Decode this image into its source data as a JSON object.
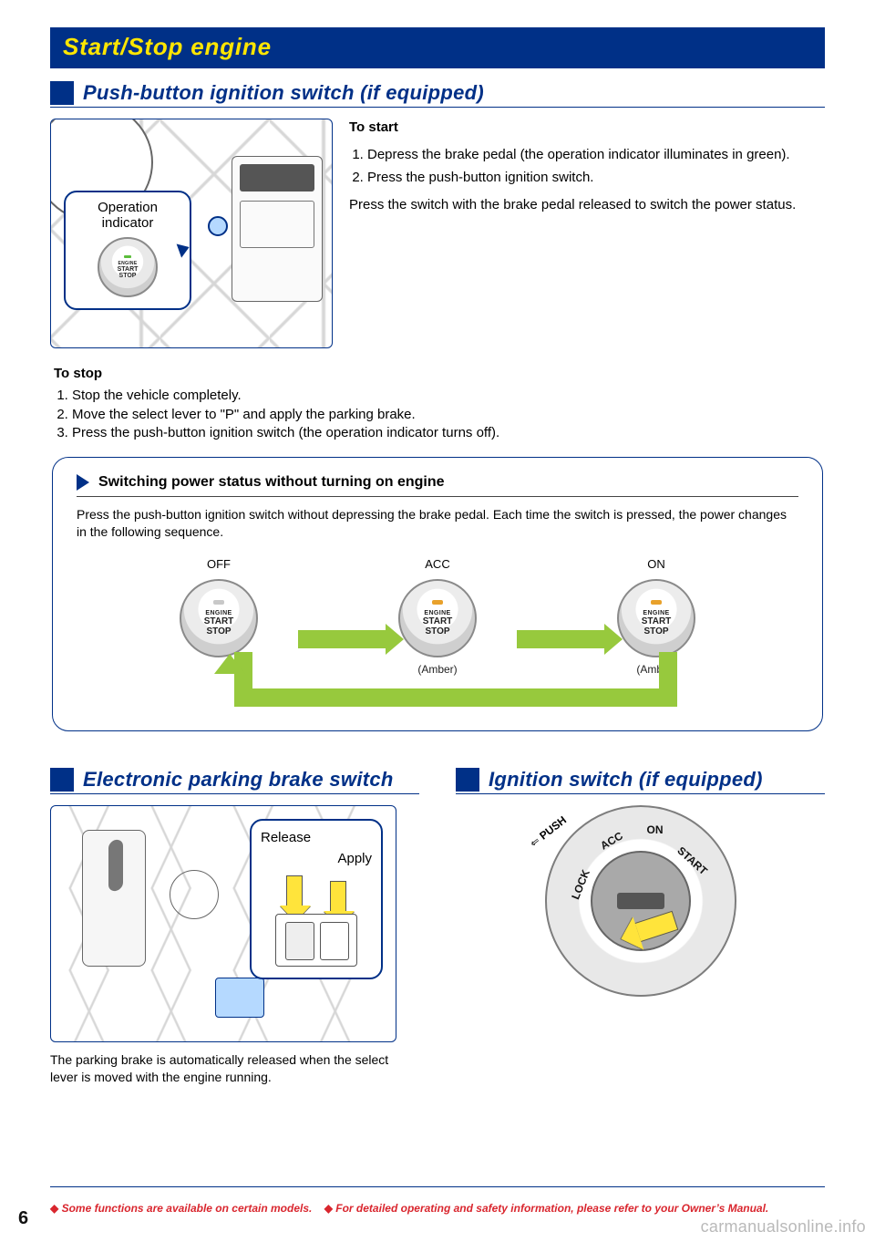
{
  "colors": {
    "banner_bg": "#003087",
    "banner_text": "#ffe600",
    "accent_blue": "#003087",
    "arrow_green": "#97c93d",
    "arrow_yellow": "#ffe43b",
    "footer_red": "#d9262e",
    "highlight_blue": "#b5d9ff"
  },
  "banner": {
    "title": "Start/Stop engine"
  },
  "section_pushbutton": {
    "heading": "Push-button ignition switch (if equipped)",
    "callout_label": "Operation indicator",
    "button_text": {
      "line1": "ENGINE",
      "line2": "START",
      "line3": "STOP"
    },
    "start_heading": "To start",
    "start_steps": [
      "Depress the brake pedal (the operation indicator illuminates in green).",
      "Press the push-button ignition switch."
    ],
    "start_note": "Press the switch with the brake pedal released to switch the power status.",
    "stop_heading": "To stop",
    "stop_steps": [
      "Stop the vehicle completely.",
      "Move the select lever to \"P\" and apply the parking brake.",
      "Press the push-button ignition switch (the operation indicator turns off)."
    ]
  },
  "power_box": {
    "title": "Switching power status without turning on engine",
    "note": "Press the push-button ignition switch without depressing the brake pedal. Each time the switch is pressed, the power changes in the following sequence.",
    "states": [
      {
        "label": "OFF",
        "sub": "",
        "led": "off"
      },
      {
        "label": "ACC",
        "sub": "(Amber)",
        "led": "amber"
      },
      {
        "label": "ON",
        "sub": "(Amber)",
        "led": "amber"
      }
    ],
    "button_text": {
      "line1": "ENGINE",
      "line2": "START",
      "line3": "STOP"
    },
    "arrow_color": "#97c93d"
  },
  "section_brake": {
    "heading": "Electronic parking brake switch",
    "release_label": "Release",
    "apply_label": "Apply",
    "note": "The parking brake is automatically released when the select lever is moved with the engine running."
  },
  "section_ignition": {
    "heading": "Ignition switch (if equipped)",
    "labels": {
      "push": "PUSH",
      "lock": "LOCK",
      "acc": "ACC",
      "on": "ON",
      "start": "START"
    }
  },
  "footer": {
    "text_a": "Some functions are available on certain models.",
    "text_b": "For detailed operating and safety information, please refer to your Owner’s Manual.",
    "diamond": "◆"
  },
  "watermark": "carmanualsonline.info",
  "page_number": "6"
}
